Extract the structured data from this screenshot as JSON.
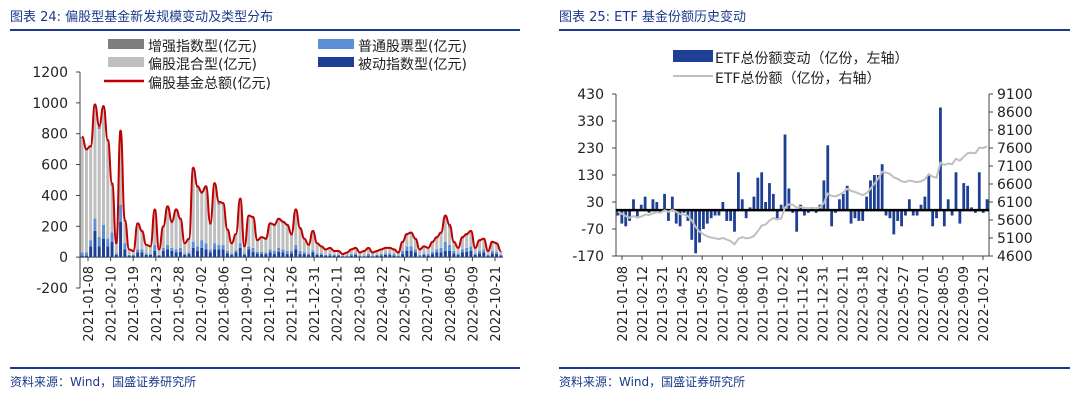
{
  "left": {
    "title": "图表 24:  偏股型基金新发规模变动及类型分布",
    "source": "资料来源：Wind，国盛证券研究所",
    "chart_data": {
      "type": "bar",
      "ylim": [
        -200,
        1200
      ],
      "yticks": [
        "1200",
        "1000",
        "800",
        "600",
        "400",
        "200",
        "0",
        "-200"
      ],
      "xticks": [
        "2021-01-08",
        "2021-02-10",
        "2021-03-19",
        "2021-04-23",
        "2021-05-28",
        "2021-07-02",
        "2021-08-06",
        "2021-09-10",
        "2021-10-22",
        "2021-11-26",
        "2021-12-31",
        "2022-02-11",
        "2022-03-18",
        "2022-04-22",
        "2022-05-27",
        "2022-07-01",
        "2022-08-05",
        "2022-09-09",
        "2022-10-21"
      ],
      "legend": [
        {
          "label": "增强指数型(亿元)",
          "color": "#7f7f7f",
          "kind": "box"
        },
        {
          "label": "普通股票型(亿元)",
          "color": "#5b8fd6",
          "kind": "box"
        },
        {
          "label": "偏股混合型(亿元)",
          "color": "#bfbfbf",
          "kind": "box"
        },
        {
          "label": "被动指数型(亿元)",
          "color": "#1e3f94",
          "kind": "box"
        },
        {
          "label": "偏股基金总额(亿元)",
          "color": "#c00000",
          "kind": "line"
        }
      ],
      "total": [
        780,
        700,
        720,
        990,
        850,
        980,
        760,
        480,
        90,
        820,
        240,
        50,
        40,
        220,
        170,
        80,
        70,
        310,
        50,
        200,
        330,
        230,
        310,
        250,
        90,
        120,
        580,
        460,
        420,
        460,
        220,
        480,
        360,
        350,
        180,
        90,
        150,
        380,
        70,
        270,
        260,
        110,
        130,
        120,
        220,
        210,
        250,
        230,
        210,
        150,
        310,
        190,
        120,
        80,
        170,
        90,
        70,
        50,
        60,
        40,
        40,
        20,
        30,
        50,
        60,
        30,
        40,
        60,
        30,
        40,
        50,
        60,
        60,
        50,
        30,
        100,
        150,
        160,
        120,
        50,
        70,
        60,
        100,
        130,
        160,
        270,
        210,
        100,
        60,
        130,
        150,
        170,
        60,
        110,
        120,
        40,
        100,
        90,
        40
      ],
      "mixed": [
        740,
        660,
        600,
        720,
        700,
        750,
        630,
        300,
        60,
        460,
        140,
        30,
        20,
        160,
        110,
        50,
        45,
        210,
        30,
        130,
        230,
        160,
        250,
        180,
        60,
        80,
        460,
        380,
        300,
        350,
        160,
        380,
        260,
        260,
        130,
        60,
        100,
        280,
        40,
        190,
        190,
        70,
        90,
        80,
        160,
        160,
        180,
        170,
        160,
        100,
        220,
        140,
        80,
        50,
        120,
        60,
        40,
        30,
        35,
        20,
        20,
        10,
        15,
        25,
        30,
        15,
        25,
        35,
        15,
        20,
        25,
        30,
        30,
        25,
        15,
        50,
        70,
        80,
        60,
        30,
        40,
        35,
        55,
        70,
        90,
        150,
        110,
        50,
        30,
        70,
        80,
        90,
        30,
        60,
        60,
        20,
        50,
        45,
        20
      ],
      "stock": [
        20,
        20,
        40,
        80,
        60,
        90,
        50,
        60,
        10,
        110,
        40,
        5,
        5,
        20,
        20,
        10,
        5,
        40,
        5,
        20,
        30,
        20,
        20,
        25,
        10,
        10,
        40,
        30,
        50,
        40,
        20,
        40,
        30,
        30,
        15,
        10,
        15,
        30,
        10,
        20,
        25,
        10,
        15,
        10,
        20,
        20,
        25,
        20,
        20,
        15,
        30,
        20,
        15,
        10,
        15,
        10,
        10,
        5,
        10,
        5,
        5,
        5,
        5,
        10,
        10,
        5,
        5,
        10,
        5,
        5,
        10,
        10,
        10,
        10,
        5,
        20,
        30,
        30,
        20,
        10,
        10,
        10,
        15,
        20,
        30,
        60,
        40,
        15,
        10,
        20,
        25,
        30,
        10,
        15,
        20,
        5,
        15,
        15,
        5
      ],
      "enhanced": [
        10,
        10,
        10,
        20,
        20,
        20,
        10,
        20,
        5,
        20,
        10,
        5,
        5,
        10,
        10,
        5,
        5,
        20,
        5,
        10,
        20,
        10,
        10,
        10,
        5,
        10,
        20,
        10,
        10,
        20,
        10,
        10,
        20,
        10,
        10,
        5,
        5,
        10,
        5,
        10,
        10,
        5,
        5,
        10,
        10,
        10,
        10,
        10,
        10,
        10,
        10,
        10,
        5,
        5,
        5,
        5,
        5,
        5,
        5,
        5,
        5,
        0,
        5,
        5,
        5,
        5,
        5,
        5,
        5,
        5,
        5,
        5,
        5,
        5,
        5,
        10,
        10,
        10,
        10,
        5,
        5,
        5,
        10,
        10,
        10,
        20,
        20,
        10,
        5,
        10,
        10,
        10,
        5,
        10,
        10,
        5,
        10,
        10,
        5
      ],
      "passive": [
        10,
        10,
        70,
        170,
        70,
        120,
        70,
        100,
        15,
        230,
        50,
        10,
        10,
        30,
        30,
        15,
        15,
        40,
        10,
        40,
        50,
        40,
        30,
        35,
        15,
        20,
        60,
        40,
        60,
        50,
        30,
        50,
        50,
        50,
        25,
        15,
        30,
        60,
        15,
        50,
        35,
        25,
        20,
        20,
        30,
        20,
        35,
        30,
        20,
        25,
        50,
        20,
        20,
        15,
        30,
        15,
        15,
        10,
        10,
        10,
        10,
        5,
        5,
        10,
        15,
        5,
        5,
        10,
        5,
        10,
        10,
        15,
        15,
        10,
        5,
        20,
        40,
        40,
        30,
        5,
        15,
        10,
        20,
        30,
        30,
        40,
        40,
        25,
        15,
        30,
        35,
        40,
        15,
        25,
        30,
        10,
        25,
        20,
        10
      ]
    }
  },
  "right": {
    "title": "图表 25:  ETF 基金份额历史变动",
    "source": "资料来源：Wind，国盛证券研究所",
    "chart_data": {
      "type": "bar",
      "ylim_left": [
        -170,
        430
      ],
      "ylim_right": [
        4600,
        9100
      ],
      "yticks_left": [
        "430",
        "330",
        "230",
        "130",
        "30",
        "-70",
        "-170"
      ],
      "yticks_right": [
        "9100",
        "8600",
        "8100",
        "7600",
        "7100",
        "6600",
        "6100",
        "5600",
        "5100",
        "4600"
      ],
      "xticks": [
        "2021-01-08",
        "2021-02-12",
        "2021-03-21",
        "2021-04-25",
        "2021-05-28",
        "2021-07-02",
        "2021-08-06",
        "2021-09-10",
        "2021-10-22",
        "2021-11-26",
        "2021-12-31",
        "2022-02-11",
        "2022-03-18",
        "2022-04-22",
        "2022-05-27",
        "2022-07-01",
        "2022-08-05",
        "2022-09-09",
        "2022-10-21"
      ],
      "legend": [
        {
          "label": "ETF总份额变动（亿份，左轴）",
          "color": "#1e3f94",
          "kind": "box"
        },
        {
          "label": "ETF总份额（亿份，右轴）",
          "color": "#bfbfbf",
          "kind": "line"
        }
      ],
      "change": [
        -20,
        -50,
        -60,
        -40,
        40,
        -30,
        20,
        50,
        -10,
        40,
        30,
        -10,
        60,
        -40,
        50,
        -50,
        -60,
        -10,
        -40,
        -110,
        -160,
        -120,
        -70,
        -50,
        -30,
        -20,
        -20,
        30,
        -40,
        -40,
        -80,
        140,
        40,
        -30,
        10,
        50,
        120,
        140,
        30,
        100,
        60,
        -30,
        20,
        280,
        80,
        -10,
        -80,
        20,
        -20,
        -10,
        10,
        -10,
        20,
        110,
        240,
        -60,
        -10,
        40,
        60,
        90,
        -50,
        -30,
        -40,
        -40,
        50,
        110,
        130,
        130,
        170,
        -20,
        -30,
        -90,
        -40,
        -60,
        -20,
        40,
        -20,
        -20,
        20,
        50,
        130,
        -60,
        -30,
        380,
        -60,
        40,
        -20,
        140,
        -50,
        100,
        90,
        10,
        -10,
        140,
        -10,
        40
      ]
    }
  }
}
